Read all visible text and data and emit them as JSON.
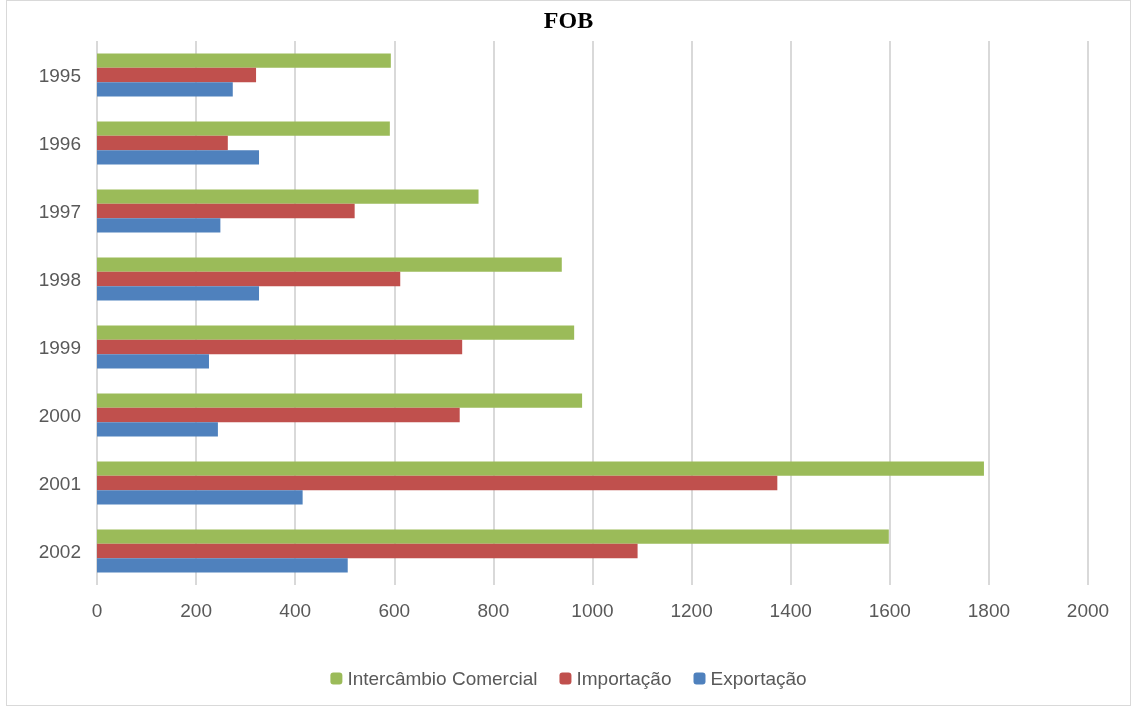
{
  "chart_data": {
    "type": "bar",
    "orientation": "horizontal",
    "title": "FOB",
    "categories": [
      "1995",
      "1996",
      "1997",
      "1998",
      "1999",
      "2000",
      "2001",
      "2002"
    ],
    "series": [
      {
        "name": "Intercâmbio Comercial",
        "color": "#9bbb59",
        "values": [
          593,
          591,
          770,
          938,
          963,
          979,
          1790,
          1598
        ]
      },
      {
        "name": "Importação",
        "color": "#c0504d",
        "values": [
          321,
          264,
          520,
          612,
          737,
          732,
          1373,
          1091
        ]
      },
      {
        "name": "Exportação",
        "color": "#4f81bd",
        "values": [
          274,
          327,
          249,
          327,
          226,
          244,
          415,
          506
        ]
      }
    ],
    "xlim": [
      0,
      2000
    ],
    "xticks": [
      0,
      200,
      400,
      600,
      800,
      1000,
      1200,
      1400,
      1600,
      1800,
      2000
    ],
    "grid": "x",
    "legend": "bottom"
  }
}
